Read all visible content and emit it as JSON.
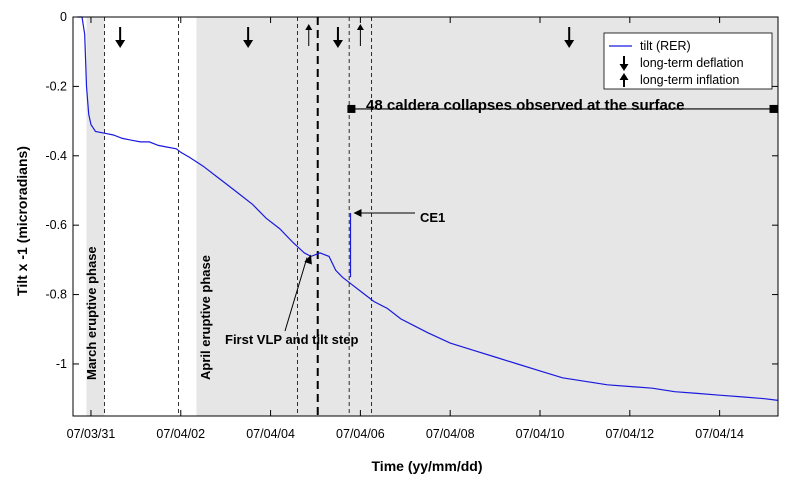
{
  "chart_data": {
    "type": "line",
    "xlabel": "Time (yy/mm/dd)",
    "ylabel": "Tilt x -1 (microradians)",
    "ylim": [
      -1.15,
      0
    ],
    "xlim_days": [
      -0.4,
      15.3
    ],
    "grid": false,
    "x_tick_labels": [
      "07/03/31",
      "07/04/02",
      "07/04/04",
      "07/04/06",
      "07/04/08",
      "07/04/10",
      "07/04/12",
      "07/04/14"
    ],
    "x_tick_days": [
      0,
      2,
      4,
      6,
      8,
      10,
      12,
      14
    ],
    "y_ticks": [
      0,
      -0.2,
      -0.4,
      -0.6,
      -0.8,
      -1
    ],
    "y_tick_labels": [
      "0",
      "-0.2",
      "-0.4",
      "-0.6",
      "-0.8",
      "-1"
    ],
    "legend": {
      "placement": "top-right",
      "entries": [
        {
          "label": "tilt (RER)",
          "symbol": "line"
        },
        {
          "label": "long-term deflation",
          "symbol": "down-arrow"
        },
        {
          "label": "long-term inflation",
          "symbol": "up-arrow"
        }
      ]
    },
    "series": [
      {
        "name": "tilt (RER)",
        "color": "#1a1adf",
        "x_days": [
          -0.3,
          -0.2,
          -0.14,
          -0.1,
          -0.05,
          0,
          0.1,
          0.3,
          0.5,
          0.7,
          0.9,
          1.1,
          1.3,
          1.5,
          1.7,
          1.9,
          2.0,
          2.2,
          2.5,
          2.8,
          3.0,
          3.3,
          3.6,
          3.9,
          4.2,
          4.5,
          4.75,
          4.9,
          5.0,
          5.1,
          5.3,
          5.45,
          5.6,
          5.7,
          5.8,
          6.0,
          6.3,
          6.6,
          6.9,
          7.2,
          7.5,
          8.0,
          8.5,
          9.0,
          9.5,
          10.0,
          10.5,
          11.0,
          11.5,
          12.0,
          12.5,
          13.0,
          13.5,
          14.0,
          14.5,
          15.0,
          15.3
        ],
        "y": [
          0,
          0,
          -0.05,
          -0.2,
          -0.28,
          -0.31,
          -0.33,
          -0.335,
          -0.34,
          -0.35,
          -0.355,
          -0.36,
          -0.36,
          -0.37,
          -0.375,
          -0.38,
          -0.39,
          -0.405,
          -0.43,
          -0.46,
          -0.48,
          -0.51,
          -0.54,
          -0.58,
          -0.61,
          -0.65,
          -0.68,
          -0.69,
          -0.685,
          -0.68,
          -0.69,
          -0.73,
          -0.75,
          -0.76,
          -0.77,
          -0.79,
          -0.82,
          -0.84,
          -0.87,
          -0.89,
          -0.91,
          -0.94,
          -0.96,
          -0.98,
          -1.0,
          -1.02,
          -1.04,
          -1.05,
          -1.06,
          -1.065,
          -1.07,
          -1.08,
          -1.085,
          -1.09,
          -1.095,
          -1.1,
          -1.105
        ]
      }
    ],
    "phases": [
      {
        "label": "March eruptive phase",
        "start_day": -0.1,
        "end_day": 0.3
      },
      {
        "label": "April eruptive phase",
        "start_day": 2.35,
        "end_day": 15.3
      }
    ],
    "dashed_lines_days": [
      0.3,
      1.95,
      4.6,
      5.05,
      5.75,
      6.25
    ],
    "bold_dashed_line_day": 5.05,
    "arrows": [
      {
        "direction": "down",
        "day": 0.65
      },
      {
        "direction": "down",
        "day": 3.5
      },
      {
        "direction": "up",
        "day": 4.85
      },
      {
        "direction": "down",
        "day": 5.5
      },
      {
        "direction": "up",
        "day": 6.0
      },
      {
        "direction": "down",
        "day": 10.65
      }
    ],
    "annotations": [
      {
        "text": "48 caldera collapses observed at the surface",
        "start_day": 5.8,
        "end_day": 15.2,
        "y": -0.265
      },
      {
        "text": "CE1",
        "target_day": 5.78,
        "target_y": -0.565
      },
      {
        "text": "First VLP and tilt step",
        "target_day": 4.9,
        "target_y": -0.685
      }
    ]
  }
}
